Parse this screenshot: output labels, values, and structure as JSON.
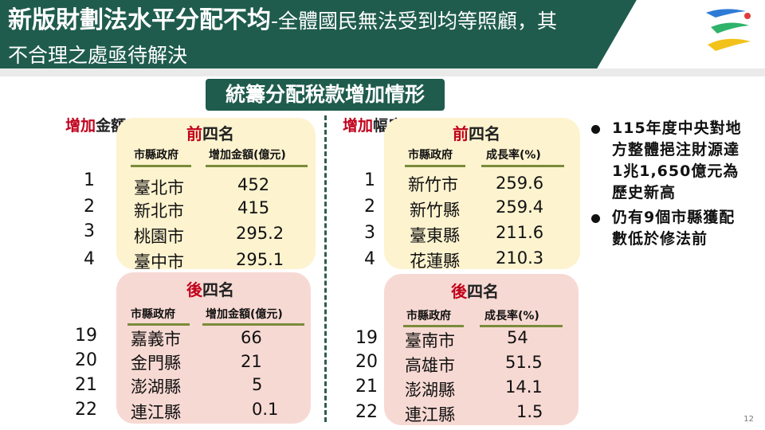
{
  "slide": {
    "title_main": "新版財劃法水平分配不均",
    "title_rest_line1": "-全體國民無法受到均等照顧，其",
    "title_line2": "不合理之處亟待解決",
    "subtitle": "統籌分配稅款增加情形",
    "page_number": "12"
  },
  "amount": {
    "label_hi": "增加",
    "label_rest": "金額",
    "top": {
      "title_hi": "前",
      "title_rest": "四名",
      "head_gov": "市縣政府",
      "head_value": "增加金額(億元)",
      "rows": [
        {
          "rank": "1",
          "name": "臺北市",
          "value": "452"
        },
        {
          "rank": "2",
          "name": "新北市",
          "value": "415"
        },
        {
          "rank": "3",
          "name": "桃園市",
          "value": "295.2"
        },
        {
          "rank": "4",
          "name": "臺中市",
          "value": "295.1"
        }
      ]
    },
    "bottom": {
      "title_hi": "後",
      "title_rest": "四名",
      "head_gov": "市縣政府",
      "head_value": "增加金額(億元)",
      "rows": [
        {
          "rank": "19",
          "name": "嘉義市",
          "value": "66"
        },
        {
          "rank": "20",
          "name": "金門縣",
          "value": "21"
        },
        {
          "rank": "21",
          "name": "澎湖縣",
          "value": "5"
        },
        {
          "rank": "22",
          "name": "連江縣",
          "value": "0.1"
        }
      ]
    }
  },
  "growth": {
    "label_hi": "增加",
    "label_rest": "幅度",
    "top": {
      "title_hi": "前",
      "title_rest": "四名",
      "head_gov": "市縣政府",
      "head_value": "成長率(%)",
      "rows": [
        {
          "rank": "1",
          "name": "新竹市",
          "value": "259.6"
        },
        {
          "rank": "2",
          "name": "新竹縣",
          "value": "259.4"
        },
        {
          "rank": "3",
          "name": "臺東縣",
          "value": "211.6"
        },
        {
          "rank": "4",
          "name": "花蓮縣",
          "value": "210.3"
        }
      ]
    },
    "bottom": {
      "title_hi": "後",
      "title_rest": "四名",
      "head_gov": "市縣政府",
      "head_value": "成長率(%)",
      "rows": [
        {
          "rank": "19",
          "name": "臺南市",
          "value": "54"
        },
        {
          "rank": "20",
          "name": "高雄市",
          "value": "51.5"
        },
        {
          "rank": "21",
          "name": "澎湖縣",
          "value": "14.1"
        },
        {
          "rank": "22",
          "name": "連江縣",
          "value": "1.5"
        }
      ]
    }
  },
  "bullets": [
    {
      "text": "115年度中央對地方整體挹注財源達1兆1,650億元為歷史新高"
    },
    {
      "text": "仍有9個市縣獲配數低於修法前"
    }
  ],
  "colors": {
    "header_green": "#1f5c4d",
    "highlight_red": "#c0001b",
    "top_panel": "#fdf3cf",
    "bottom_panel": "#f7d9d3"
  }
}
